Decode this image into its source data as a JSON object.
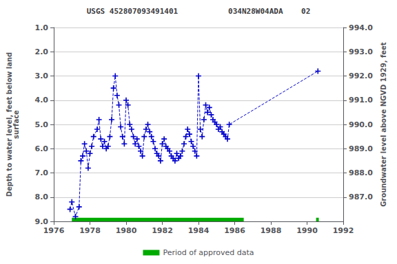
{
  "chart_data": {
    "type": "line",
    "title": "USGS 452807093491401           034N28W04ADA    02",
    "ylabel": "Depth to water level, feet below land\nsurface",
    "y2label": "Groundwater level above NGVD 1929, feet",
    "x": [
      1976.9,
      1977.0,
      1977.2,
      1977.4,
      1977.5,
      1977.6,
      1977.7,
      1977.8,
      1977.9,
      1978.0,
      1978.1,
      1978.2,
      1978.4,
      1978.5,
      1978.6,
      1978.7,
      1978.8,
      1978.9,
      1979.0,
      1979.1,
      1979.2,
      1979.3,
      1979.4,
      1979.5,
      1979.6,
      1979.7,
      1979.8,
      1979.9,
      1980.0,
      1980.1,
      1980.2,
      1980.3,
      1980.4,
      1980.5,
      1980.6,
      1980.7,
      1980.8,
      1980.9,
      1981.0,
      1981.1,
      1981.2,
      1981.3,
      1981.4,
      1981.5,
      1981.6,
      1981.7,
      1981.8,
      1981.9,
      1982.0,
      1982.1,
      1982.2,
      1982.3,
      1982.4,
      1982.5,
      1982.6,
      1982.7,
      1982.8,
      1982.9,
      1983.0,
      1983.1,
      1983.2,
      1983.3,
      1983.4,
      1983.5,
      1983.6,
      1983.7,
      1983.8,
      1983.9,
      1984.0,
      1984.1,
      1984.2,
      1984.3,
      1984.4,
      1984.5,
      1984.6,
      1984.7,
      1984.8,
      1984.9,
      1985.0,
      1985.1,
      1985.2,
      1985.3,
      1985.4,
      1985.5,
      1985.6,
      1985.7,
      1990.6
    ],
    "series": [
      {
        "color": "#0000cc",
        "marker": "plus",
        "line_style": "dashed",
        "values": [
          8.5,
          8.2,
          8.8,
          8.4,
          6.5,
          6.3,
          5.8,
          6.1,
          6.8,
          6.2,
          5.9,
          5.5,
          5.2,
          4.8,
          5.6,
          5.9,
          5.7,
          6.0,
          5.9,
          5.5,
          4.8,
          3.5,
          3.0,
          3.8,
          4.2,
          5.1,
          5.5,
          5.8,
          4.0,
          4.2,
          5.0,
          5.2,
          5.5,
          5.8,
          5.6,
          5.9,
          6.1,
          6.3,
          5.5,
          5.2,
          5.0,
          5.3,
          5.5,
          5.7,
          6.0,
          6.2,
          6.3,
          6.5,
          5.8,
          5.6,
          5.9,
          6.0,
          6.1,
          6.3,
          6.4,
          6.5,
          6.2,
          6.4,
          6.3,
          6.1,
          5.8,
          5.5,
          5.2,
          5.4,
          5.7,
          5.9,
          6.1,
          6.3,
          3.0,
          5.2,
          5.5,
          4.8,
          4.2,
          4.5,
          4.3,
          4.6,
          4.8,
          4.9,
          5.0,
          5.2,
          5.1,
          5.3,
          5.4,
          5.5,
          5.6,
          5.0,
          2.8
        ]
      }
    ],
    "xlim": [
      1976,
      1992
    ],
    "xticks": [
      1976,
      1978,
      1980,
      1982,
      1984,
      1986,
      1988,
      1990,
      1992
    ],
    "ylim": [
      9.0,
      1.0
    ],
    "yticks": [
      {
        "value": 1.0,
        "label": "1.0"
      },
      {
        "value": 2.0,
        "label": "2.0"
      },
      {
        "value": 3.0,
        "label": "3.0"
      },
      {
        "value": 4.0,
        "label": "4.0"
      },
      {
        "value": 5.0,
        "label": "5.0"
      },
      {
        "value": 6.0,
        "label": "6.0"
      },
      {
        "value": 7.0,
        "label": "7.0"
      },
      {
        "value": 8.0,
        "label": "8.0"
      },
      {
        "value": 9.0,
        "label": "9.0"
      }
    ],
    "y2lim": [
      986.0,
      994.0
    ],
    "y2ticks": [
      {
        "value": 994.0,
        "label": "994.0"
      },
      {
        "value": 993.0,
        "label": "993.0"
      },
      {
        "value": 992.0,
        "label": "992.0"
      },
      {
        "value": 991.0,
        "label": "991.0"
      },
      {
        "value": 990.0,
        "label": "990.0"
      },
      {
        "value": 989.0,
        "label": "989.0"
      },
      {
        "value": 988.0,
        "label": "988.0"
      },
      {
        "value": 987.0,
        "label": "987.0"
      }
    ],
    "grid": true,
    "legend": "bottom",
    "approved_label": "Period of approved data",
    "approved_color": "#00aa00",
    "approved_periods": [
      [
        1977.0,
        1986.5
      ],
      [
        1990.5,
        1990.65
      ]
    ],
    "approved_depth": [
      8.85,
      9.0
    ]
  }
}
